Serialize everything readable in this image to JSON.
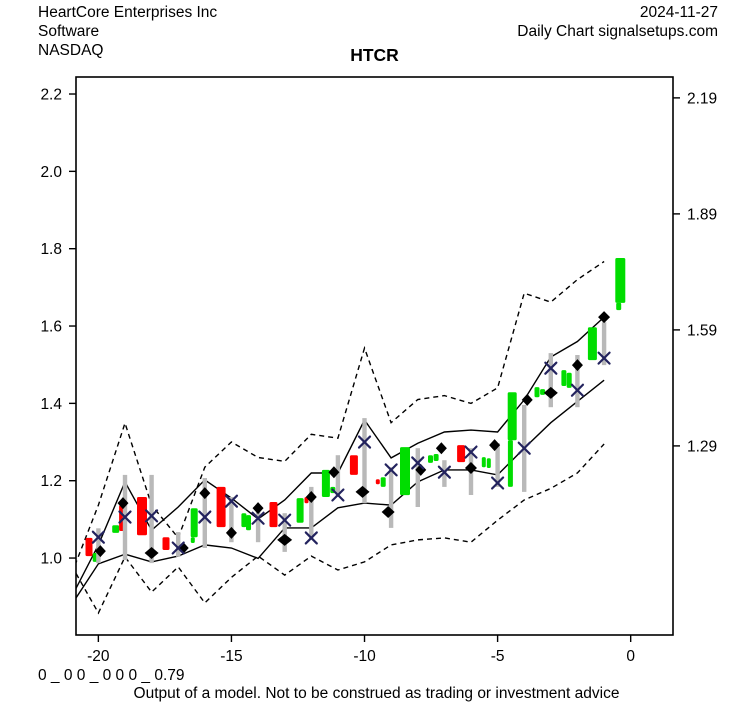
{
  "header": {
    "company": "HeartCore Enterprises Inc",
    "sector": "Software",
    "exchange": "NASDAQ",
    "date": "2024-11-27",
    "chart_kind": "Daily Chart signalsetups.com"
  },
  "title": "HTCR",
  "footer": {
    "signal_string": "0 _ 0 0 _ 0 0 0 _ 0.79",
    "disclaimer": "Output of a model. Not to be construed as trading or investment advice"
  },
  "colors": {
    "up_candle": "#00dd00",
    "down_candle": "#ff0000",
    "range_bar": "#b9b9b9",
    "band_line": "#000000",
    "x_marker": "#23235e",
    "diamond_marker": "#000000",
    "frame": "#000000"
  },
  "chart_data": {
    "type": "candlestick_with_bands",
    "title": "HTCR",
    "xlabel": "",
    "ylabel": "",
    "x_range": [
      -20.84,
      1.59
    ],
    "y_range": [
      0.801,
      2.244
    ],
    "x_ticks": [
      -20,
      -15,
      -10,
      -5,
      0
    ],
    "y_ticks_left": [
      1.0,
      1.2,
      1.4,
      1.6,
      1.8,
      2.0,
      2.2
    ],
    "y_ticks_right": [
      1.29,
      1.59,
      1.89,
      2.19
    ],
    "candles": [
      [
        -20.35,
        "r",
        1.052,
        1.005,
        7
      ],
      [
        -20.1,
        "g",
        1.013,
        0.99,
        6
      ],
      [
        -19.35,
        "g",
        1.085,
        1.065,
        7
      ],
      [
        -19.09,
        "r",
        1.137,
        1.07,
        7
      ],
      [
        -18.36,
        "r",
        1.158,
        1.059,
        10
      ],
      [
        -17.46,
        "r",
        1.054,
        1.021,
        7
      ],
      [
        -16.4,
        "g",
        1.129,
        1.054,
        7
      ],
      [
        -16.45,
        "g",
        1.054,
        1.039,
        4
      ],
      [
        -15.39,
        "r",
        1.184,
        1.08,
        9
      ],
      [
        -14.53,
        "g",
        1.116,
        1.08,
        5
      ],
      [
        -14.36,
        "g",
        1.111,
        1.072,
        5
      ],
      [
        -13.42,
        "r",
        1.145,
        1.08,
        8
      ],
      [
        -12.42,
        "g",
        1.155,
        1.091,
        7
      ],
      [
        -12.18,
        "r",
        1.158,
        1.142,
        4
      ],
      [
        -11.45,
        "g",
        1.228,
        1.158,
        8
      ],
      [
        -11.19,
        "g",
        1.184,
        1.168,
        5
      ],
      [
        -10.4,
        "r",
        1.266,
        1.215,
        8
      ],
      [
        -9.5,
        "r",
        1.204,
        1.191,
        4
      ],
      [
        -9.3,
        "g",
        1.209,
        1.184,
        5
      ],
      [
        -8.48,
        "g",
        1.287,
        1.163,
        10
      ],
      [
        -7.52,
        "g",
        1.266,
        1.246,
        5
      ],
      [
        -7.31,
        "g",
        1.269,
        1.251,
        5
      ],
      [
        -6.37,
        "r",
        1.292,
        1.248,
        8
      ],
      [
        -5.52,
        "g",
        1.261,
        1.235,
        4
      ],
      [
        -5.33,
        "g",
        1.258,
        1.233,
        4
      ],
      [
        -4.45,
        "g",
        1.429,
        1.305,
        9
      ],
      [
        -4.52,
        "g",
        1.305,
        1.184,
        5
      ],
      [
        -3.52,
        "g",
        1.442,
        1.416,
        5
      ],
      [
        -3.31,
        "g",
        1.437,
        1.422,
        5
      ],
      [
        -2.51,
        "g",
        1.486,
        1.445,
        5
      ],
      [
        -2.31,
        "g",
        1.479,
        1.44,
        5
      ],
      [
        -1.44,
        "g",
        1.597,
        1.512,
        9
      ],
      [
        -0.39,
        "g",
        1.776,
        1.66,
        10
      ],
      [
        -0.45,
        "g",
        1.66,
        1.641,
        5
      ]
    ],
    "range_bars": [
      [
        -20,
        1.077,
        0.987
      ],
      [
        -19,
        1.215,
        0.995
      ],
      [
        -18,
        1.215,
        0.987
      ],
      [
        -17,
        1.067,
        1.003
      ],
      [
        -16,
        1.207,
        1.026
      ],
      [
        -15,
        1.158,
        1.041
      ],
      [
        -14,
        1.137,
        1.041
      ],
      [
        -13,
        1.116,
        1.016
      ],
      [
        -12,
        1.184,
        1.047
      ],
      [
        -11,
        1.266,
        1.158
      ],
      [
        -10,
        1.362,
        1.142
      ],
      [
        -9,
        1.235,
        1.078
      ],
      [
        -8,
        1.284,
        1.132
      ],
      [
        -7,
        1.253,
        1.184
      ],
      [
        -6,
        1.284,
        1.163
      ],
      [
        -5,
        1.297,
        1.184
      ],
      [
        -4,
        1.396,
        1.171
      ],
      [
        -3,
        1.53,
        1.39
      ],
      [
        -2,
        1.525,
        1.39
      ],
      [
        -1,
        1.61,
        1.499
      ]
    ],
    "x_markers": [
      [
        -20,
        1.054
      ],
      [
        -19,
        1.106
      ],
      [
        -18,
        1.109
      ],
      [
        -17,
        1.026
      ],
      [
        -16,
        1.106
      ],
      [
        -15,
        1.147
      ],
      [
        -14,
        1.103
      ],
      [
        -13,
        1.098
      ],
      [
        -12,
        1.052
      ],
      [
        -11,
        1.163
      ],
      [
        -10,
        1.3
      ],
      [
        -9,
        1.228
      ],
      [
        -8,
        1.246
      ],
      [
        -7,
        1.222
      ],
      [
        -6,
        1.274
      ],
      [
        -5,
        1.194
      ],
      [
        -4,
        1.284
      ],
      [
        -3,
        1.491
      ],
      [
        -2,
        1.434
      ],
      [
        -1,
        1.517
      ]
    ],
    "diamond_markers": [
      [
        -20,
        1.018,
        2,
        11
      ],
      [
        -19,
        1.142,
        -2,
        11
      ],
      [
        -18,
        1.013,
        0,
        14
      ],
      [
        -17,
        1.026,
        5,
        11
      ],
      [
        -16,
        1.168,
        0,
        11
      ],
      [
        -15,
        1.065,
        0,
        11
      ],
      [
        -14,
        1.129,
        0,
        11
      ],
      [
        -13,
        1.047,
        0,
        15
      ],
      [
        -12,
        1.158,
        0,
        11
      ],
      [
        -11,
        1.222,
        -4,
        11
      ],
      [
        -10,
        1.171,
        -2,
        14
      ],
      [
        -9,
        1.119,
        -3,
        13
      ],
      [
        -8,
        1.228,
        3,
        11
      ],
      [
        -7,
        1.284,
        -3,
        11
      ],
      [
        -6,
        1.233,
        0,
        12
      ],
      [
        -5,
        1.292,
        -3,
        11
      ],
      [
        -4,
        1.409,
        3,
        11
      ],
      [
        -3,
        1.427,
        0,
        14
      ],
      [
        -2,
        1.499,
        0,
        11
      ],
      [
        -1,
        1.623,
        0,
        12
      ]
    ],
    "bands": {
      "solid_upper": [
        [
          -21,
          0.9
        ],
        [
          -20,
          1.034
        ],
        [
          -19,
          1.197
        ],
        [
          -18,
          1.072
        ],
        [
          -17,
          1.132
        ],
        [
          -16,
          1.202
        ],
        [
          -15,
          1.155
        ],
        [
          -14,
          1.101
        ],
        [
          -13,
          1.15
        ],
        [
          -12,
          1.22
        ],
        [
          -11,
          1.22
        ],
        [
          -10,
          1.357
        ],
        [
          -9,
          1.259
        ],
        [
          -8,
          1.297
        ],
        [
          -7,
          1.326
        ],
        [
          -6,
          1.331
        ],
        [
          -5,
          1.326
        ],
        [
          -4,
          1.409
        ],
        [
          -3,
          1.52
        ],
        [
          -2,
          1.56
        ],
        [
          -1,
          1.623
        ]
      ],
      "solid_lower": [
        [
          -21,
          0.88
        ],
        [
          -20,
          0.985
        ],
        [
          -19,
          1.01
        ],
        [
          -18,
          0.99
        ],
        [
          -17,
          1.005
        ],
        [
          -16,
          1.034
        ],
        [
          -15,
          1.026
        ],
        [
          -14,
          0.999
        ],
        [
          -13,
          1.078
        ],
        [
          -12,
          1.078
        ],
        [
          -11,
          1.13
        ],
        [
          -10,
          1.142
        ],
        [
          -9,
          1.137
        ],
        [
          -8,
          1.197
        ],
        [
          -7,
          1.228
        ],
        [
          -6,
          1.228
        ],
        [
          -5,
          1.215
        ],
        [
          -4,
          1.284
        ],
        [
          -3,
          1.35
        ],
        [
          -2,
          1.405
        ],
        [
          -1,
          1.46
        ]
      ],
      "dashed_upper": [
        [
          -21,
          0.96
        ],
        [
          -20,
          1.137
        ],
        [
          -19,
          1.349
        ],
        [
          -18,
          1.137
        ],
        [
          -17,
          1.052
        ],
        [
          -16,
          1.235
        ],
        [
          -15,
          1.3
        ],
        [
          -14,
          1.26
        ],
        [
          -13,
          1.25
        ],
        [
          -12,
          1.32
        ],
        [
          -11,
          1.31
        ],
        [
          -10,
          1.543
        ],
        [
          -9,
          1.35
        ],
        [
          -8,
          1.41
        ],
        [
          -7,
          1.42
        ],
        [
          -6,
          1.4
        ],
        [
          -5,
          1.44
        ],
        [
          -4,
          1.685
        ],
        [
          -3,
          1.662
        ],
        [
          -2,
          1.72
        ],
        [
          -1,
          1.767
        ]
      ],
      "dashed_lower": [
        [
          -21,
          0.98
        ],
        [
          -20,
          0.858
        ],
        [
          -19,
          1.003
        ],
        [
          -18,
          0.912
        ],
        [
          -17,
          0.977
        ],
        [
          -16,
          0.884
        ],
        [
          -15,
          0.95
        ],
        [
          -14,
          1.005
        ],
        [
          -13,
          0.956
        ],
        [
          -12,
          1.005
        ],
        [
          -11,
          0.969
        ],
        [
          -10,
          0.99
        ],
        [
          -9,
          1.034
        ],
        [
          -8,
          1.047
        ],
        [
          -7,
          1.052
        ],
        [
          -6,
          1.041
        ],
        [
          -5,
          1.098
        ],
        [
          -4,
          1.15
        ],
        [
          -3,
          1.18
        ],
        [
          -2,
          1.22
        ],
        [
          -1,
          1.295
        ]
      ]
    }
  }
}
